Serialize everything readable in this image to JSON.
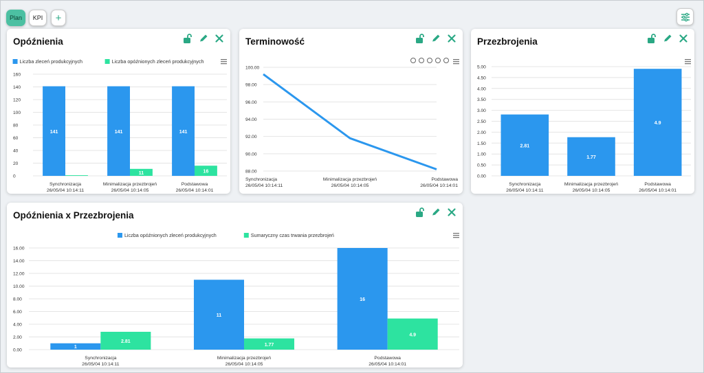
{
  "tabs": [
    {
      "label": "Plan",
      "active": true
    },
    {
      "label": "KPI",
      "active": false
    }
  ],
  "add_tab_label": "+",
  "panels": {
    "p1": {
      "title": "Opóźnienia"
    },
    "p2": {
      "title": "Terminowość"
    },
    "p3": {
      "title": "Przezbrojenia"
    },
    "p4": {
      "title": "Opóźnienia x Przezbrojenia"
    }
  },
  "colors": {
    "blue": "#2b97ee",
    "green": "#2de3a0",
    "accent": "#2aa884"
  },
  "chart_data": [
    {
      "id": "p1",
      "type": "bar",
      "categories": [
        [
          "Synchronizacja",
          "26/05/04 10:14:11"
        ],
        [
          "Minimalizacja przezbrojeń",
          "26/05/04 10:14:05"
        ],
        [
          "Podstawowa",
          "26/05/04 10:14:01"
        ]
      ],
      "series": [
        {
          "name": "Liczba zleceń produkcyjnych",
          "values": [
            141,
            141,
            141
          ],
          "labels": [
            "141",
            "141",
            "141"
          ]
        },
        {
          "name": "Liczba opóźnionych zleceń produkcyjnych",
          "values": [
            1,
            11,
            16
          ],
          "labels": [
            "",
            "11",
            "16"
          ]
        }
      ],
      "ylim": [
        0,
        160
      ],
      "yticks": [
        "0",
        "20",
        "40",
        "60",
        "80",
        "100",
        "120",
        "140",
        "160"
      ],
      "legend": "top"
    },
    {
      "id": "p2",
      "type": "line",
      "categories": [
        [
          "Synchronizacja",
          "26/05/04 10:14:11"
        ],
        [
          "Minimalizacja przezbrojeń",
          "26/05/04 10:14:05"
        ],
        [
          "Podstawowa",
          "26/05/04 10:14:01"
        ]
      ],
      "series": [
        {
          "values": [
            99.2,
            91.8,
            88.2
          ]
        }
      ],
      "ylim": [
        88,
        100
      ],
      "yticks": [
        "88.00",
        "90.00",
        "92.00",
        "94.00",
        "96.00",
        "98.00",
        "100.00"
      ]
    },
    {
      "id": "p3",
      "type": "bar",
      "categories": [
        [
          "Synchronizacja",
          "26/05/04 10:14:11"
        ],
        [
          "Minimalizacja przezbrojeń",
          "26/05/04 10:14:05"
        ],
        [
          "Podstawowa",
          "26/05/04 10:14:01"
        ]
      ],
      "series": [
        {
          "values": [
            2.81,
            1.77,
            4.9
          ],
          "labels": [
            "2.81",
            "1.77",
            "4.9"
          ]
        }
      ],
      "ylim": [
        0,
        5
      ],
      "yticks": [
        "0.00",
        "0.50",
        "1.00",
        "1.50",
        "2.00",
        "2.50",
        "3.00",
        "3.50",
        "4.00",
        "4.50",
        "5.00"
      ]
    },
    {
      "id": "p4",
      "type": "bar",
      "categories": [
        [
          "Synchronizacja",
          "26/05/04 10:14:11"
        ],
        [
          "Minimalizacja przezbrojeń",
          "26/05/04 10:14:05"
        ],
        [
          "Podstawowa",
          "26/05/04 10:14:01"
        ]
      ],
      "series": [
        {
          "name": "Liczba opóźnionych zleceń produkcyjnych",
          "values": [
            1,
            11,
            16
          ],
          "labels": [
            "1",
            "11",
            "16"
          ]
        },
        {
          "name": "Sumaryczny czas trwania przezbrojeń",
          "values": [
            2.81,
            1.77,
            4.9
          ],
          "labels": [
            "2.81",
            "1.77",
            "4.9"
          ]
        }
      ],
      "ylim": [
        0,
        16
      ],
      "yticks": [
        "0.00",
        "2.00",
        "4.00",
        "6.00",
        "8.00",
        "10.00",
        "12.00",
        "14.00",
        "16.00"
      ],
      "legend": "top"
    }
  ]
}
